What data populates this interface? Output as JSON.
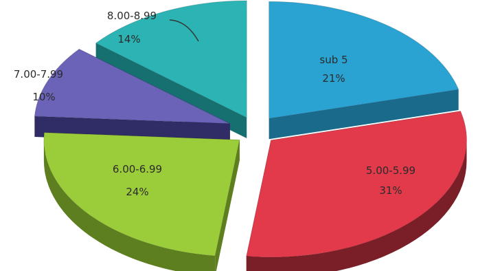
{
  "chart_data": {
    "type": "pie",
    "style": "3d-exploded",
    "title": "",
    "slices": [
      {
        "label": "sub 5",
        "value": 21,
        "value_label": "21%",
        "color": "#2aa3d3",
        "side_color": "#1a6a8c",
        "label_position": "inside"
      },
      {
        "label": "5.00-5.99",
        "value": 31,
        "value_label": "31%",
        "color": "#e23a4b",
        "side_color": "#7a1e27",
        "label_position": "inside"
      },
      {
        "label": "6.00-6.99",
        "value": 24,
        "value_label": "24%",
        "color": "#9bcc3a",
        "side_color": "#5d7f1f",
        "label_position": "inside"
      },
      {
        "label": "7.00-7.99",
        "value": 10,
        "value_label": "10%",
        "color": "#6a63b8",
        "side_color": "#2f2c66",
        "label_position": "outside"
      },
      {
        "label": "8.00-8.99",
        "value": 14,
        "value_label": "14%",
        "color": "#2cb3b3",
        "side_color": "#167070",
        "label_position": "outside"
      }
    ]
  }
}
